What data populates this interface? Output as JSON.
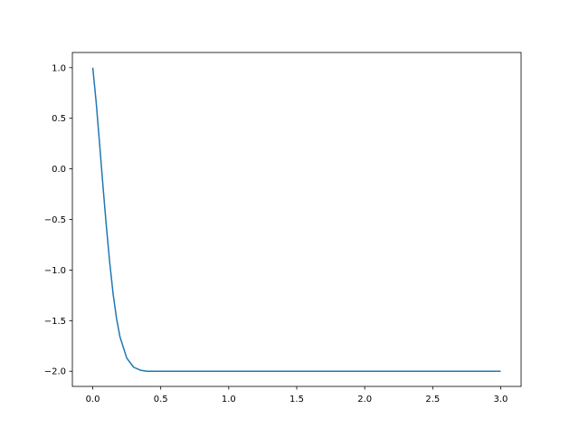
{
  "chart_data": {
    "type": "line",
    "title": "",
    "xlabel": "",
    "ylabel": "",
    "xlim": [
      -0.15,
      3.15
    ],
    "ylim": [
      -2.15,
      1.15
    ],
    "xticks": [
      "0.0",
      "0.5",
      "1.0",
      "1.5",
      "2.0",
      "2.5",
      "3.0"
    ],
    "xtick_values": [
      0,
      0.5,
      1.0,
      1.5,
      2.0,
      2.5,
      3.0
    ],
    "yticks": [
      "1.0",
      "0.5",
      "0.0",
      "−0.5",
      "−1.0",
      "−1.5",
      "−2.0"
    ],
    "ytick_values": [
      1.0,
      0.5,
      0.0,
      -0.5,
      -1.0,
      -1.5,
      -2.0
    ],
    "grid": false,
    "series": [
      {
        "color": "#1f77b4",
        "x": [
          0,
          0.025,
          0.05,
          0.075,
          0.1,
          0.125,
          0.15,
          0.175,
          0.2,
          0.25,
          0.3,
          0.35,
          0.4,
          0.5,
          0.6,
          1.0,
          1.5,
          2.0,
          2.5,
          3.0
        ],
        "y": [
          1.0,
          0.66,
          0.25,
          -0.17,
          -0.57,
          -0.93,
          -1.24,
          -1.48,
          -1.66,
          -1.87,
          -1.96,
          -1.99,
          -2.0,
          -2.0,
          -2.0,
          -2.0,
          -2.0,
          -2.0,
          -2.0,
          -2.0
        ]
      }
    ]
  }
}
